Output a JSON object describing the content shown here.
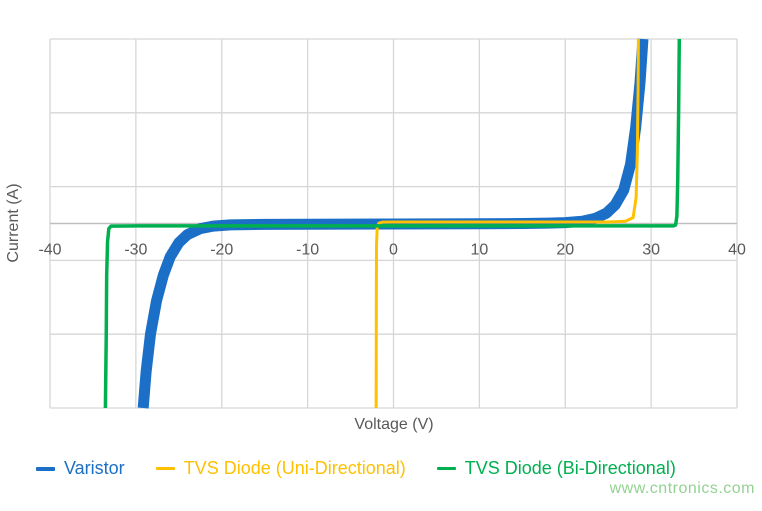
{
  "watermark": {
    "text": "www.cntronics.com",
    "color": "#93d293"
  },
  "chart_data": {
    "type": "line",
    "title": "",
    "xlabel": "Voltage (V)",
    "ylabel": "Current (A)",
    "x_ticks": [
      -40,
      -30,
      -20,
      -10,
      0,
      10,
      20,
      30,
      40
    ],
    "xlim": [
      -40,
      40
    ],
    "ylim": [
      -2.5,
      2.5
    ],
    "y_gridlines": [
      -2.5,
      -1.5,
      -0.5,
      0.5,
      1.5,
      2.5
    ],
    "y_tick_labels_shown": false,
    "grid": true,
    "legend_position": "bottom",
    "grid_color": "#d6d6d6",
    "axis_color": "#bfbfbf",
    "label_color": "#595959",
    "series": [
      {
        "name": "Varistor",
        "color": "#1b6fc6",
        "width": 11,
        "points": [
          [
            -29.15,
            -2.5
          ],
          [
            -28.8,
            -2.0
          ],
          [
            -28.3,
            -1.5
          ],
          [
            -27.6,
            -1.05
          ],
          [
            -26.8,
            -0.7
          ],
          [
            -26,
            -0.45
          ],
          [
            -25,
            -0.26
          ],
          [
            -24,
            -0.15
          ],
          [
            -22.5,
            -0.07
          ],
          [
            -21,
            -0.035
          ],
          [
            -19,
            -0.018
          ],
          [
            -15,
            -0.012
          ],
          [
            -10,
            -0.01
          ],
          [
            -5,
            -0.008
          ],
          [
            0,
            -0.007
          ],
          [
            5,
            -0.005
          ],
          [
            10,
            -0.003
          ],
          [
            15,
            0.0
          ],
          [
            18,
            0.005
          ],
          [
            20,
            0.012
          ],
          [
            22,
            0.03
          ],
          [
            23.5,
            0.07
          ],
          [
            24.8,
            0.14
          ],
          [
            25.8,
            0.25
          ],
          [
            26.8,
            0.45
          ],
          [
            27.6,
            0.8
          ],
          [
            28.2,
            1.3
          ],
          [
            28.7,
            1.9
          ],
          [
            29.05,
            2.5
          ]
        ]
      },
      {
        "name": "TVS Diode (Uni-Directional)",
        "color": "#ffc000",
        "width": 3,
        "points": [
          [
            -2.02,
            -2.5
          ],
          [
            -2.0,
            -1.0
          ],
          [
            -1.98,
            -0.3
          ],
          [
            -1.9,
            -0.06
          ],
          [
            -1.7,
            0.005
          ],
          [
            -1.3,
            0.018
          ],
          [
            0,
            0.02
          ],
          [
            10,
            0.02
          ],
          [
            20,
            0.02
          ],
          [
            25,
            0.02
          ],
          [
            27,
            0.03
          ],
          [
            27.9,
            0.08
          ],
          [
            28.25,
            0.35
          ],
          [
            28.4,
            1.0
          ],
          [
            28.48,
            1.8
          ],
          [
            28.52,
            2.5
          ]
        ]
      },
      {
        "name": "TVS Diode (Bi-Directional)",
        "color": "#00b050",
        "width": 3.5,
        "points": [
          [
            -33.55,
            -2.5
          ],
          [
            -33.45,
            -1.5
          ],
          [
            -33.4,
            -0.7
          ],
          [
            -33.3,
            -0.25
          ],
          [
            -33.15,
            -0.07
          ],
          [
            -32.9,
            -0.035
          ],
          [
            -30,
            -0.033
          ],
          [
            -20,
            -0.032
          ],
          [
            -10,
            -0.032
          ],
          [
            0,
            -0.032
          ],
          [
            10,
            -0.032
          ],
          [
            20,
            -0.032
          ],
          [
            30,
            -0.032
          ],
          [
            32.6,
            -0.032
          ],
          [
            32.85,
            -0.02
          ],
          [
            33.0,
            0.1
          ],
          [
            33.1,
            0.6
          ],
          [
            33.2,
            1.5
          ],
          [
            33.28,
            2.5
          ]
        ]
      }
    ]
  }
}
